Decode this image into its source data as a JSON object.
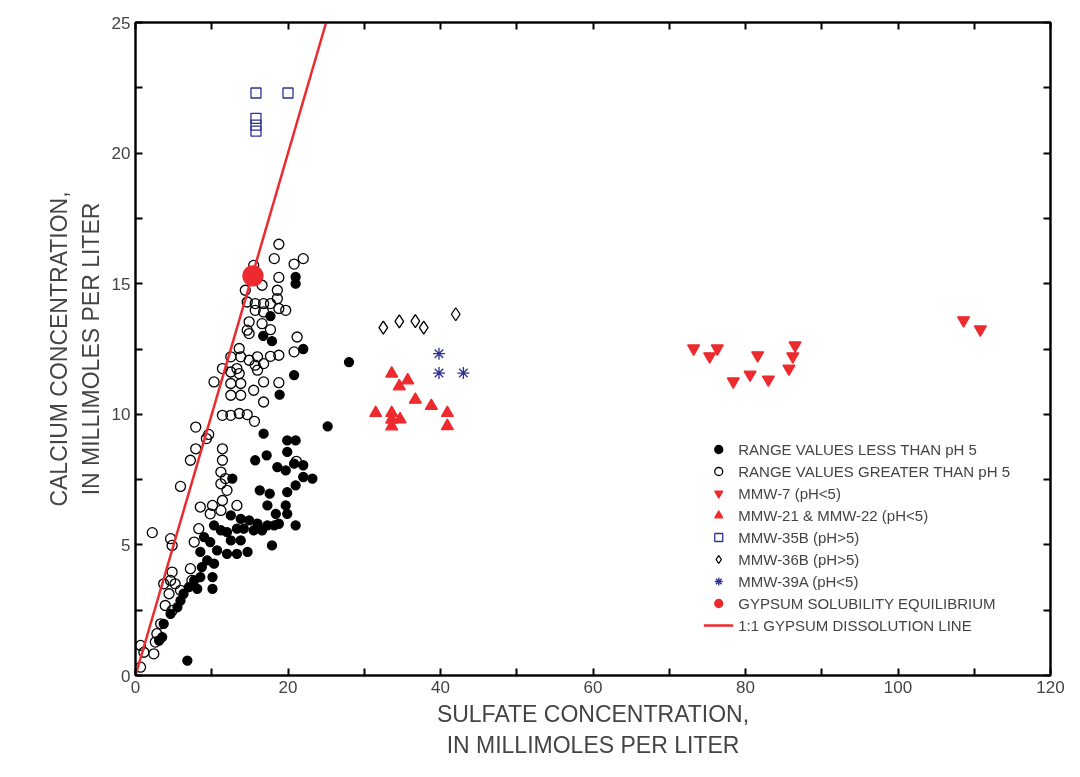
{
  "chart_data": {
    "type": "scatter",
    "xlabel": "SULFATE CONCENTRATION,\nIN MILLIMOLES PER LITER",
    "ylabel": "CALCIUM CONCENTRATION,\nIN MILLIMOLES PER LITER",
    "xlim": [
      0,
      120
    ],
    "ylim": [
      0,
      25
    ],
    "xticks": [
      0,
      {
        "value": 10,
        "label": null
      },
      20,
      {
        "value": 30,
        "label": null
      },
      40,
      {
        "value": 50,
        "label": null
      },
      60,
      {
        "value": 70,
        "label": null
      },
      80,
      {
        "value": 90,
        "label": null
      },
      100,
      {
        "value": 110,
        "label": null
      },
      120
    ],
    "yticks": [
      0,
      {
        "value": 2.5,
        "label": null
      },
      5,
      {
        "value": 7.5,
        "label": null
      },
      10,
      {
        "value": 12.5,
        "label": null
      },
      15,
      {
        "value": 17.5,
        "label": null
      },
      20,
      {
        "value": 22.5,
        "label": null
      },
      25
    ],
    "grid": false,
    "legend": "bottom right",
    "series": [
      {
        "name": "RANGE VALUES LESS THAN pH 5",
        "color": "#000000",
        "marker": "circle",
        "x": [
          21.0,
          21.0,
          17.7,
          16.75,
          17.9,
          22.0,
          20.8,
          18.9,
          28.0,
          25.2,
          16.8,
          19.9,
          21.0,
          19.9,
          15.7,
          17.2,
          12.7,
          18.6,
          19.7,
          20.8,
          22.0,
          23.2,
          22.0,
          16.3,
          17.6,
          19.9,
          21.0,
          17.3,
          19.7,
          18.4,
          19.9,
          18.8,
          21.0,
          12.5,
          13.8,
          14.9,
          16.0,
          17.3,
          18.2,
          10.3,
          11.2,
          12.0,
          13.3,
          14.2,
          15.5,
          16.6,
          12.5,
          13.8,
          17.9,
          14.7,
          9.0,
          9.8,
          10.7,
          12.0,
          13.3,
          8.5,
          9.4,
          10.3,
          8.7,
          10.1,
          8.5,
          7.7,
          7.0,
          10.1,
          8.1,
          6.3,
          5.9,
          5.5,
          4.6,
          3.7,
          3.5,
          3.1,
          6.8
        ],
        "values": [
          15.26,
          15.0,
          13.76,
          13.0,
          12.8,
          12.5,
          11.5,
          10.75,
          12.0,
          9.54,
          9.26,
          9.0,
          9.0,
          8.56,
          8.24,
          8.43,
          7.54,
          7.98,
          7.85,
          8.11,
          8.05,
          7.54,
          7.6,
          7.09,
          6.96,
          7.02,
          7.28,
          6.51,
          6.51,
          6.19,
          6.19,
          5.81,
          5.75,
          6.13,
          6.0,
          5.94,
          5.81,
          5.75,
          5.75,
          5.75,
          5.56,
          5.49,
          5.62,
          5.62,
          5.56,
          5.56,
          5.17,
          5.17,
          4.98,
          4.73,
          5.3,
          5.11,
          4.79,
          4.66,
          4.66,
          4.73,
          4.41,
          4.28,
          4.15,
          3.77,
          3.77,
          3.64,
          3.38,
          3.32,
          3.32,
          3.13,
          2.87,
          2.62,
          2.36,
          1.98,
          1.47,
          1.34,
          0.57
        ]
      },
      {
        "name": "RANGE VALUES GREATER THAN pH 5",
        "color": "#000000",
        "marker": "circle_open",
        "x": [
          18.8,
          18.2,
          22.0,
          20.8,
          15.5,
          18.8,
          16.6,
          18.6,
          14.4,
          18.6,
          14.65,
          15.7,
          16.8,
          17.7,
          18.8,
          19.7,
          15.7,
          16.8,
          14.9,
          16.6,
          17.7,
          14.65,
          14.9,
          21.2,
          13.6,
          12.5,
          13.8,
          16.0,
          17.7,
          18.8,
          20.8,
          11.4,
          13.3,
          14.9,
          15.7,
          16.8,
          16.0,
          12.5,
          13.6,
          10.3,
          12.5,
          13.8,
          15.5,
          16.8,
          18.8,
          12.5,
          13.8,
          16.8,
          11.4,
          12.5,
          13.6,
          14.65,
          15.6,
          7.9,
          9.6,
          9.3,
          7.9,
          7.2,
          11.4,
          11.4,
          11.2,
          11.8,
          5.9,
          11.2,
          12.0,
          11.4,
          8.5,
          10.1,
          11.2,
          13.3,
          9.8,
          8.3,
          2.2,
          4.6,
          4.8,
          7.7,
          7.2,
          4.8,
          4.6,
          3.7,
          5.2,
          5.9,
          7.4,
          4.4,
          3.9,
          4.8,
          3.3,
          2.8,
          2.6,
          0.66,
          1.1,
          2.4,
          0.66,
          21.1
        ],
        "values": [
          16.51,
          15.96,
          15.96,
          15.75,
          15.7,
          15.24,
          14.94,
          14.75,
          14.75,
          14.43,
          14.3,
          14.24,
          14.24,
          14.24,
          14.05,
          13.98,
          13.98,
          13.92,
          13.54,
          13.47,
          13.24,
          13.22,
          13.09,
          12.96,
          12.52,
          12.2,
          12.2,
          12.2,
          12.22,
          12.26,
          12.39,
          11.75,
          11.75,
          12.07,
          11.88,
          11.94,
          11.69,
          11.62,
          11.56,
          11.24,
          11.18,
          11.18,
          10.92,
          11.24,
          11.21,
          10.73,
          10.73,
          10.47,
          9.96,
          9.96,
          10.03,
          9.99,
          9.73,
          9.51,
          9.23,
          9.07,
          8.68,
          8.24,
          8.68,
          8.24,
          7.79,
          7.54,
          7.24,
          7.34,
          7.09,
          6.7,
          6.45,
          6.51,
          6.32,
          6.51,
          6.19,
          5.62,
          5.47,
          5.24,
          4.98,
          5.11,
          4.09,
          3.96,
          3.64,
          3.51,
          3.51,
          3.26,
          3.64,
          3.13,
          2.68,
          2.49,
          1.98,
          1.6,
          1.28,
          1.15,
          0.89,
          0.83,
          0.32,
          8.2
        ]
      },
      {
        "name": "MMW-7 (pH<5)",
        "color": "#ed2a2e",
        "marker": "triangle_down",
        "x": [
          73.2,
          75.3,
          76.3,
          78.4,
          80.6,
          81.6,
          83.0,
          85.7,
          86.2,
          86.5,
          108.6,
          110.8
        ],
        "values": [
          12.52,
          12.22,
          12.52,
          11.26,
          11.52,
          12.26,
          11.33,
          11.75,
          12.22,
          12.64,
          13.6,
          13.25
        ]
      },
      {
        "name": "MMW-21 & MMW-22 (pH<5)",
        "color": "#ed2a2e",
        "marker": "triangle",
        "x": [
          33.6,
          35.7,
          34.6,
          36.7,
          38.8,
          31.5,
          33.6,
          40.9,
          33.6,
          34.7,
          33.6,
          40.9
        ],
        "values": [
          11.56,
          11.3,
          11.07,
          10.56,
          10.32,
          10.05,
          10.05,
          10.05,
          9.8,
          9.81,
          9.54,
          9.55
        ]
      },
      {
        "name": "MMW-35B (pH>5)",
        "color": "#2e3192",
        "marker": "square_open",
        "x": [
          15.8,
          20.0,
          15.8,
          15.8,
          15.8
        ],
        "values": [
          22.3,
          22.3,
          21.33,
          21.07,
          20.84
        ]
      },
      {
        "name": "MMW-36B (pH>5)",
        "color": "#000000",
        "marker": "diamond_open",
        "x": [
          32.5,
          34.6,
          36.7,
          37.8,
          42.0
        ],
        "values": [
          13.32,
          13.56,
          13.57,
          13.32,
          13.83
        ]
      },
      {
        "name": "MMW-39A (pH<5)",
        "color": "#2e3192",
        "marker": "cross",
        "x": [
          39.8,
          39.8,
          43.0
        ],
        "values": [
          12.32,
          11.58,
          11.58
        ]
      },
      {
        "name": "GYPSUM SOLUBILITY EQUILIBRIUM",
        "color": "#ed2a2e",
        "marker": "circle_large",
        "x": [
          15.4
        ],
        "values": [
          15.3
        ]
      },
      {
        "name": "1:1 GYPSUM DISSOLUTION LINE",
        "type": "line",
        "color": "#ed2a2e",
        "line_style": "solid",
        "x": [
          0,
          25
        ],
        "values": [
          0,
          25
        ]
      }
    ]
  }
}
